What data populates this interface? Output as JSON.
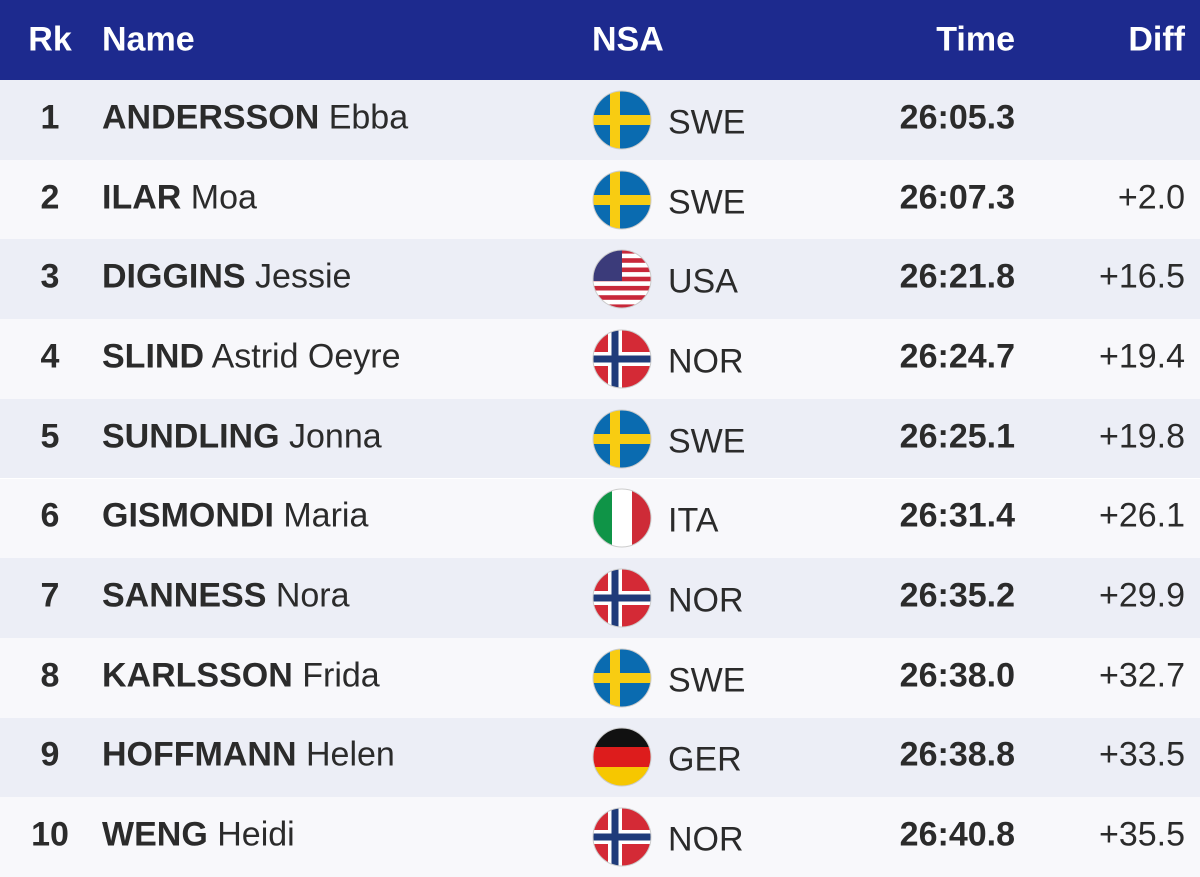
{
  "header": {
    "columns": [
      "Rk",
      "Name",
      "NSA",
      "Time",
      "Diff"
    ]
  },
  "table": {
    "rows": [
      {
        "rank": 1,
        "last": "ANDERSSON",
        "first": "Ebba",
        "nsa": "SWE",
        "time": "26:05.3"
      },
      {
        "rank": 2,
        "last": "ILAR",
        "first": "Moa",
        "nsa": "SWE",
        "time": "26:07.3",
        "diff": "+2.0"
      },
      {
        "rank": 3,
        "last": "DIGGINS",
        "first": "Jessie",
        "nsa": "USA",
        "time": "26:21.8",
        "diff": "+16.5"
      },
      {
        "rank": 4,
        "last": "SLIND",
        "first": "Astrid Oeyre",
        "nsa": "NOR",
        "time": "26:24.7",
        "diff": "+19.4"
      },
      {
        "rank": 5,
        "last": "SUNDLING",
        "first": "Jonna",
        "nsa": "SWE",
        "time": "26:25.1",
        "diff": "+19.8"
      },
      {
        "rank": 6,
        "last": "GISMONDI",
        "first": "Maria",
        "nsa": "ITA",
        "time": "26:31.4",
        "diff": "+26.1"
      },
      {
        "rank": 7,
        "last": "SANNESS",
        "first": "Nora",
        "nsa": "NOR",
        "time": "26:35.2",
        "diff": "+29.9"
      },
      {
        "rank": 8,
        "last": "KARLSSON",
        "first": "Frida",
        "nsa": "SWE",
        "time": "26:38.0",
        "diff": "+32.7"
      },
      {
        "rank": 9,
        "last": "HOFFMANN",
        "first": "Helen",
        "nsa": "GER",
        "time": "26:38.8",
        "diff": "+33.5"
      },
      {
        "rank": 10,
        "last": "WENG",
        "first": "Heidi",
        "nsa": "NOR",
        "time": "26:40.8",
        "diff": "+35.5"
      }
    ]
  }
}
